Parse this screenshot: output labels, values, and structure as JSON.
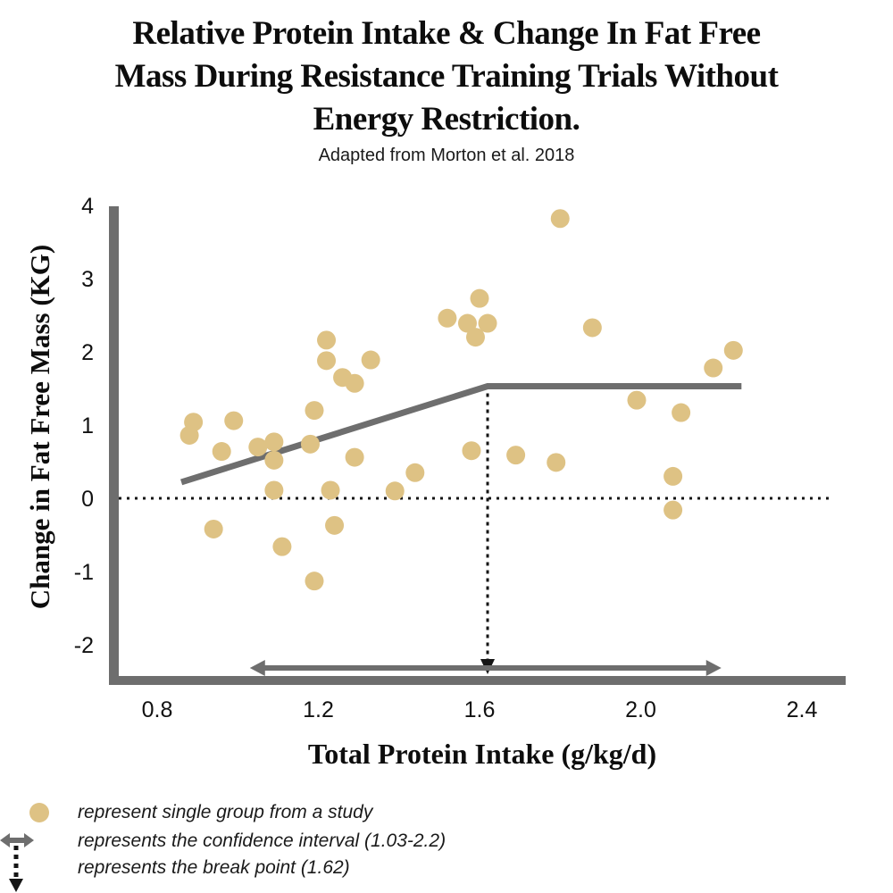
{
  "title": {
    "lines": [
      "Relative Protein Intake & Change In Fat Free",
      "Mass During Resistance Training Trials Without",
      "Energy Restriction."
    ]
  },
  "subtitle": "Adapted from Morton et al. 2018",
  "chart_data": {
    "type": "scatter",
    "title": "Relative Protein Intake & Change In Fat Free Mass During Resistance Training Trials Without Energy Restriction.",
    "subtitle": "Adapted from Morton et al. 2018",
    "xlabel": "Total Protein Intake (g/kg/d)",
    "ylabel": "Change in Fat Free Mass (KG)",
    "xlim": [
      0.68,
      2.52
    ],
    "ylim": [
      -2.45,
      4.1
    ],
    "grid": false,
    "x_ticks": [
      0.8,
      1.2,
      1.6,
      2.0,
      2.4
    ],
    "x_tick_labels": [
      "0.8",
      "1.2",
      "1.6",
      "2.0",
      "2.4"
    ],
    "y_ticks": [
      4,
      3,
      2,
      1,
      0,
      -1,
      -2
    ],
    "y_tick_labels": [
      "4",
      "3",
      "2",
      "1",
      "0",
      "-1",
      "-2"
    ],
    "zero_reference_line_y": 0,
    "points": [
      [
        0.88,
        0.86
      ],
      [
        0.89,
        1.04
      ],
      [
        0.94,
        -0.42
      ],
      [
        0.96,
        0.64
      ],
      [
        0.99,
        1.06
      ],
      [
        1.05,
        0.7
      ],
      [
        1.09,
        0.77
      ],
      [
        1.09,
        0.52
      ],
      [
        1.09,
        0.11
      ],
      [
        1.11,
        -0.66
      ],
      [
        1.18,
        0.74
      ],
      [
        1.19,
        1.2
      ],
      [
        1.19,
        -1.13
      ],
      [
        1.22,
        2.16
      ],
      [
        1.22,
        1.88
      ],
      [
        1.23,
        0.11
      ],
      [
        1.24,
        -0.37
      ],
      [
        1.26,
        1.65
      ],
      [
        1.29,
        1.57
      ],
      [
        1.29,
        0.56
      ],
      [
        1.33,
        1.89
      ],
      [
        1.39,
        0.1
      ],
      [
        1.44,
        0.35
      ],
      [
        1.52,
        2.46
      ],
      [
        1.57,
        2.39
      ],
      [
        1.59,
        2.2
      ],
      [
        1.6,
        2.73
      ],
      [
        1.62,
        2.39
      ],
      [
        1.58,
        0.65
      ],
      [
        1.69,
        0.59
      ],
      [
        1.79,
        0.49
      ],
      [
        1.8,
        3.82
      ],
      [
        1.88,
        2.33
      ],
      [
        1.99,
        1.34
      ],
      [
        2.08,
        0.3
      ],
      [
        2.08,
        -0.16
      ],
      [
        2.1,
        1.17
      ],
      [
        2.18,
        1.78
      ],
      [
        2.23,
        2.02
      ]
    ],
    "trend_line": {
      "segments": [
        [
          0.86,
          0.22
        ],
        [
          1.62,
          1.53
        ],
        [
          2.25,
          1.53
        ]
      ]
    },
    "break_point": {
      "x": 1.62,
      "label": "1.62"
    },
    "confidence_interval": {
      "from": 1.03,
      "to": 2.2,
      "label": "1.03-2.2"
    },
    "colors": {
      "point": "#dec284",
      "line": "#6e6e6e",
      "axis": "#6e6e6e",
      "dotted": "#151515",
      "text": "#111111"
    }
  },
  "legend": {
    "items": [
      {
        "icon": "scatter-dot-icon",
        "label": "represent single group from a study"
      },
      {
        "icon": "confidence-interval-arrow-icon",
        "label": "represents the confidence interval (1.03-2.2)"
      },
      {
        "icon": "break-point-arrow-icon",
        "label": "represents the break point (1.62)"
      }
    ]
  }
}
